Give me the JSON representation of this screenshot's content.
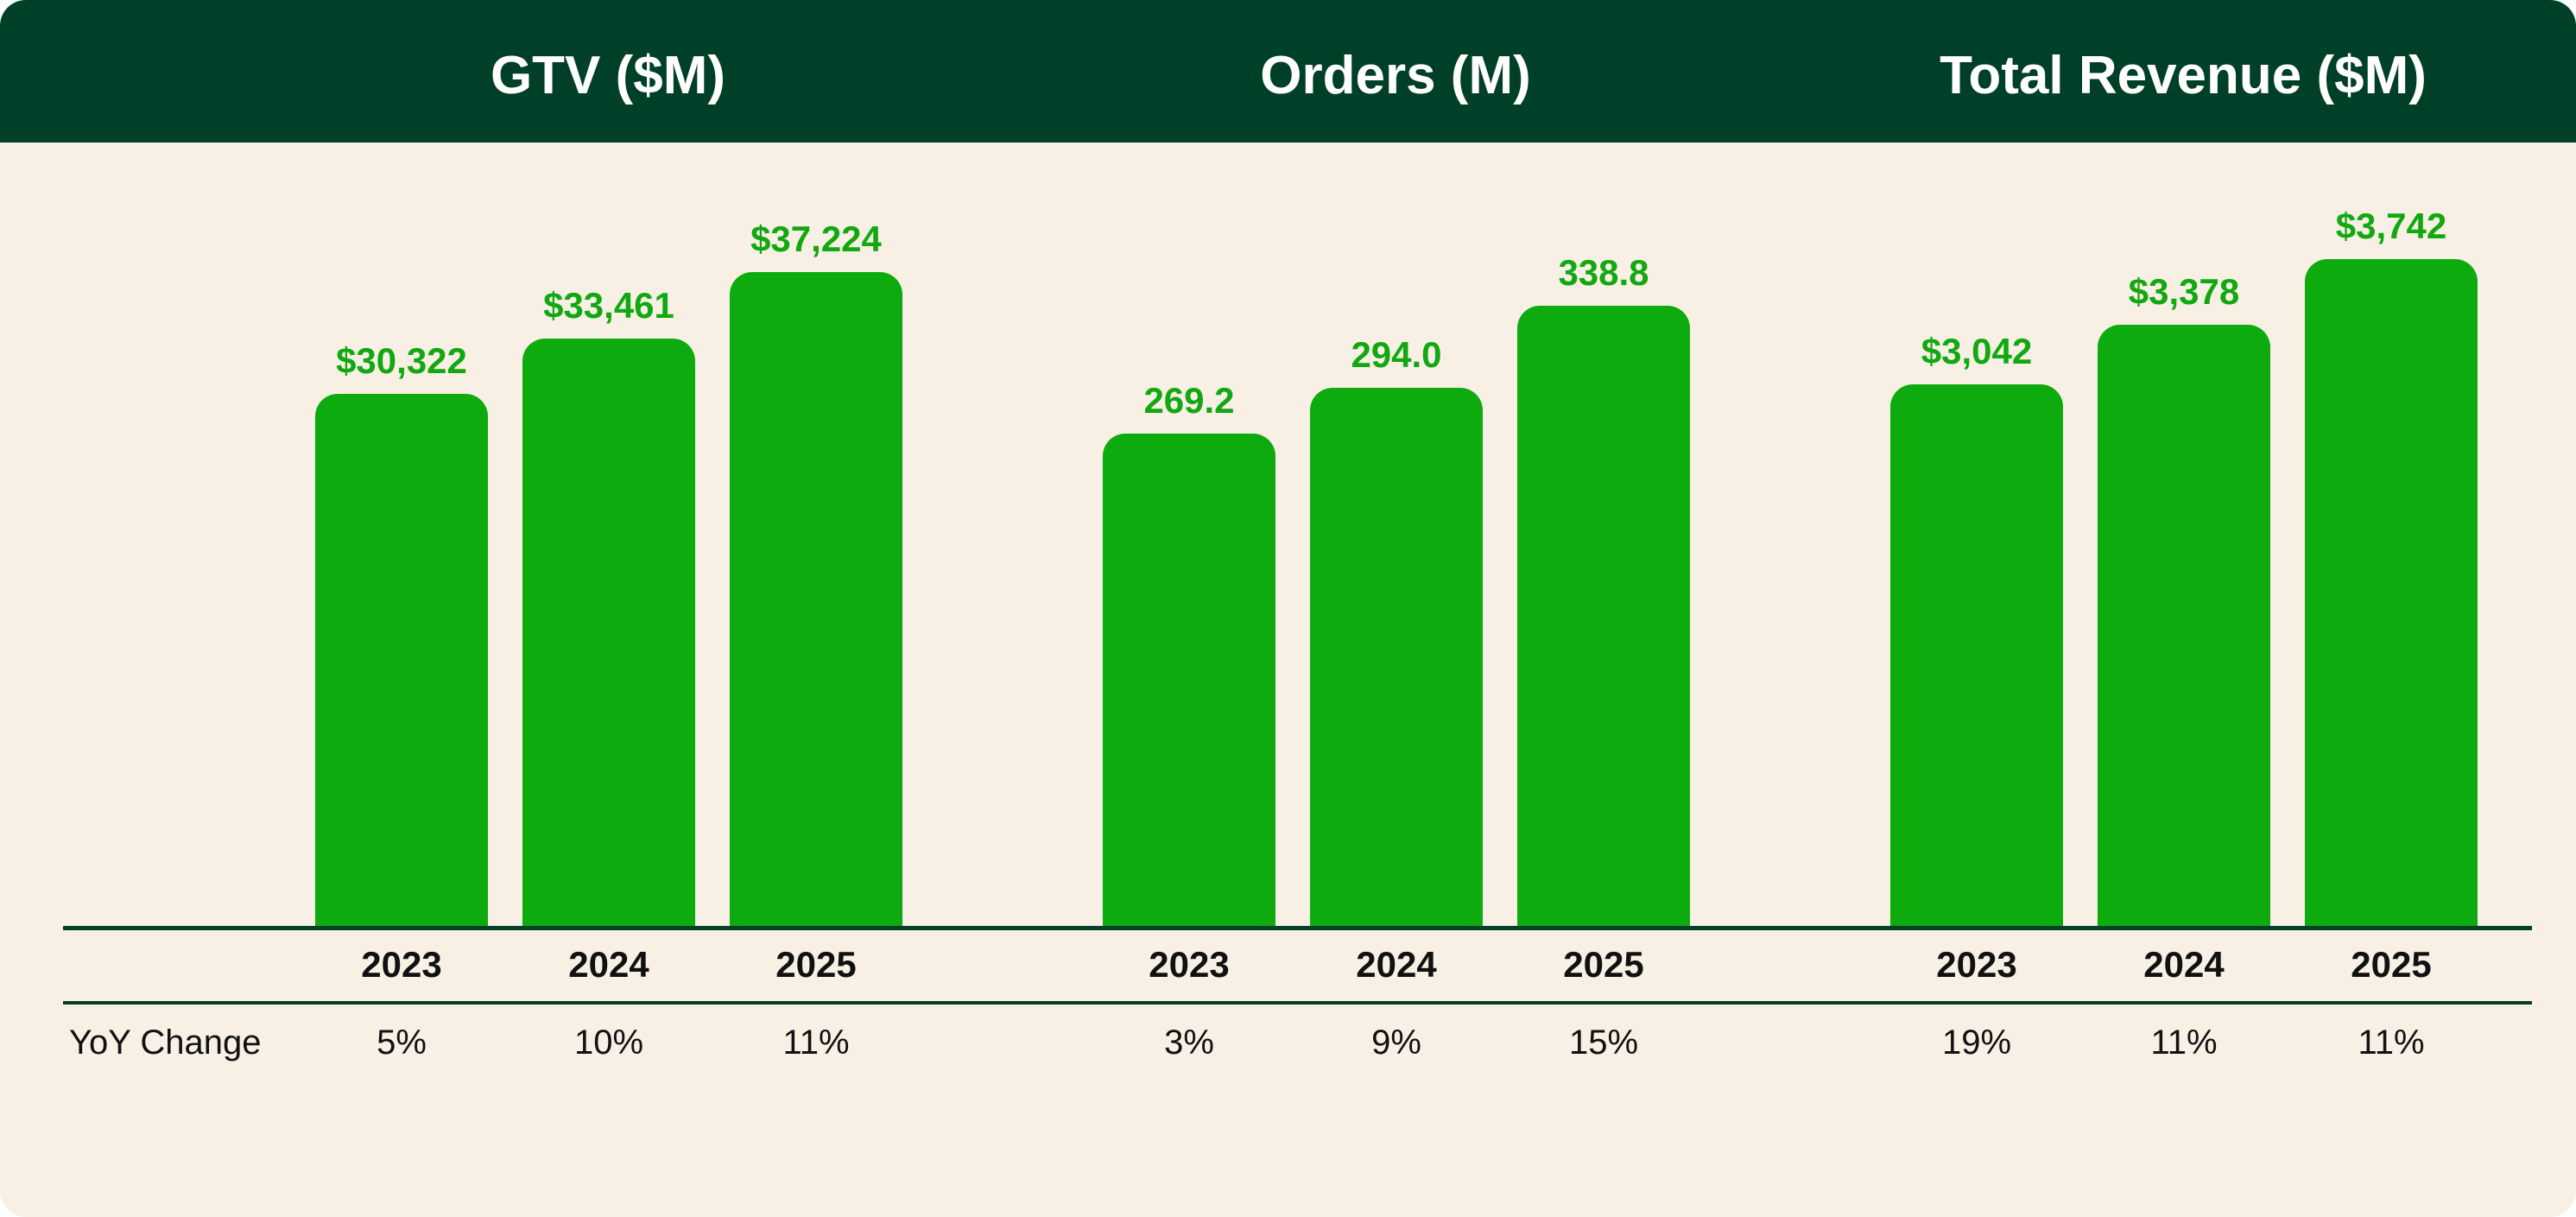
{
  "colors": {
    "header_bg": "#003F28",
    "body_bg": "#F8F0E5",
    "bar": "#0DAB0D",
    "label": "#11A811",
    "rule": "#003F28"
  },
  "row_label": "YoY Change",
  "chart_data": [
    {
      "type": "bar",
      "title": "GTV ($M)",
      "categories": [
        "2023",
        "2024",
        "2025"
      ],
      "values": [
        30322,
        33461,
        37224
      ],
      "value_labels": [
        "$30,322",
        "$33,461",
        "$37,224"
      ],
      "yoy": [
        "5%",
        "10%",
        "11%"
      ],
      "ylim": [
        0,
        49200
      ]
    },
    {
      "type": "bar",
      "title": "Orders (M)",
      "categories": [
        "2023",
        "2024",
        "2025"
      ],
      "values": [
        269.2,
        294.0,
        338.8
      ],
      "value_labels": [
        "269.2",
        "294.0",
        "338.8"
      ],
      "yoy": [
        "3%",
        "9%",
        "15%"
      ],
      "ylim": [
        0,
        472
      ]
    },
    {
      "type": "bar",
      "title": "Total Revenue ($M)",
      "categories": [
        "2023",
        "2024",
        "2025"
      ],
      "values": [
        3042,
        3378,
        3742
      ],
      "value_labels": [
        "$3,042",
        "$3,378",
        "$3,742"
      ],
      "yoy": [
        "19%",
        "11%",
        "11%"
      ],
      "ylim": [
        0,
        4850
      ]
    }
  ]
}
